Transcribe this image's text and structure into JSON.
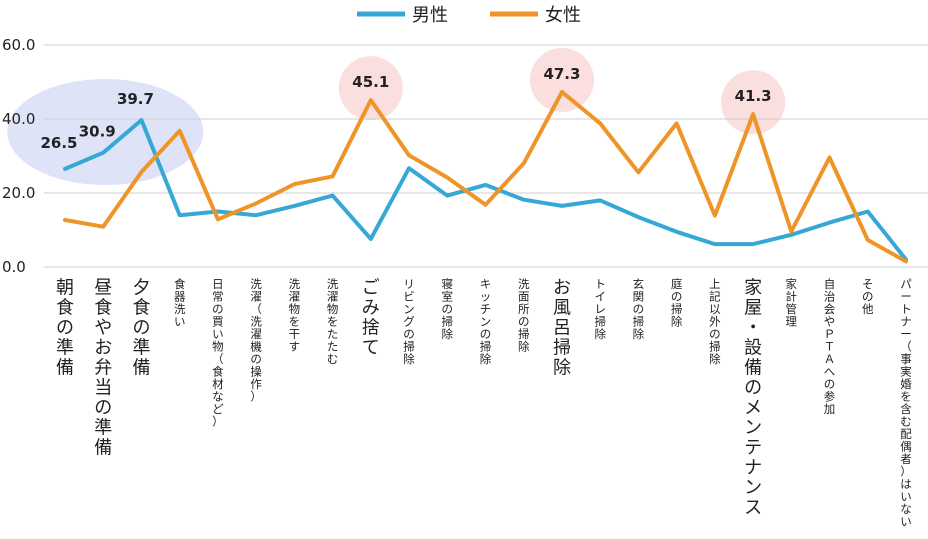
{
  "chart_data": {
    "type": "line",
    "ylim": [
      0,
      60
    ],
    "yticks": [
      "0.0",
      "20.0",
      "40.0",
      "60.0"
    ],
    "grid": true,
    "legend_position": "top-center",
    "colors": {
      "male": "#36a8d6",
      "female": "#ef9528",
      "highlight_blue_text": "#2f3ad6",
      "highlight_red_text": "#e8212a",
      "circle_blue": "#dfe3f7",
      "circle_pink": "#fbdede",
      "grid": "#cfcfcf"
    },
    "categories": [
      {
        "label": "朝食の準備",
        "style": "blue"
      },
      {
        "label": "昼食やお弁当の準備",
        "style": "blue"
      },
      {
        "label": "夕食の準備",
        "style": "blue"
      },
      {
        "label": "食器洗い",
        "style": "normal"
      },
      {
        "label": "日常の買い物（食材など）",
        "style": "normal"
      },
      {
        "label": "洗濯（洗濯機の操作）",
        "style": "normal"
      },
      {
        "label": "洗濯物を干す",
        "style": "normal"
      },
      {
        "label": "洗濯物をたたむ",
        "style": "normal"
      },
      {
        "label": "ごみ捨て",
        "style": "red"
      },
      {
        "label": "リビングの掃除",
        "style": "normal"
      },
      {
        "label": "寝室の掃除",
        "style": "normal"
      },
      {
        "label": "キッチンの掃除",
        "style": "normal"
      },
      {
        "label": "洗面所の掃除",
        "style": "normal"
      },
      {
        "label": "お風呂掃除",
        "style": "red"
      },
      {
        "label": "トイレ掃除",
        "style": "normal"
      },
      {
        "label": "玄関の掃除",
        "style": "normal"
      },
      {
        "label": "庭の掃除",
        "style": "normal"
      },
      {
        "label": "上記以外の掃除",
        "style": "normal"
      },
      {
        "label": "家屋・設備のメンテナンス",
        "style": "red"
      },
      {
        "label": "家計管理",
        "style": "normal"
      },
      {
        "label": "自治会やＰＴＡへの参加",
        "style": "normal"
      },
      {
        "label": "その他",
        "style": "normal"
      },
      {
        "label": "パートナー（事実婚を含む配偶者）はいない",
        "style": "normal"
      }
    ],
    "series": [
      {
        "name": "男性",
        "color_key": "male",
        "values": [
          26.5,
          30.9,
          39.7,
          14.0,
          15.0,
          14.0,
          16.5,
          19.3,
          7.6,
          26.7,
          19.3,
          22.2,
          18.2,
          16.5,
          18.0,
          13.5,
          9.5,
          6.2,
          6.2,
          8.7,
          12.0,
          15.0,
          2.0
        ]
      },
      {
        "name": "女性",
        "color_key": "female",
        "values": [
          12.7,
          10.9,
          25.7,
          36.8,
          12.9,
          17.2,
          22.4,
          24.5,
          45.1,
          30.2,
          24.2,
          16.8,
          28.0,
          47.3,
          38.8,
          25.6,
          38.8,
          13.9,
          41.3,
          9.6,
          29.6,
          7.3,
          1.5
        ]
      }
    ],
    "data_labels": [
      {
        "series": 0,
        "index": 0,
        "text": "26.5"
      },
      {
        "series": 0,
        "index": 1,
        "text": "30.9"
      },
      {
        "series": 0,
        "index": 2,
        "text": "39.7"
      },
      {
        "series": 1,
        "index": 8,
        "text": "45.1"
      },
      {
        "series": 1,
        "index": 13,
        "text": "47.3"
      },
      {
        "series": 1,
        "index": 18,
        "text": "41.3"
      }
    ]
  }
}
